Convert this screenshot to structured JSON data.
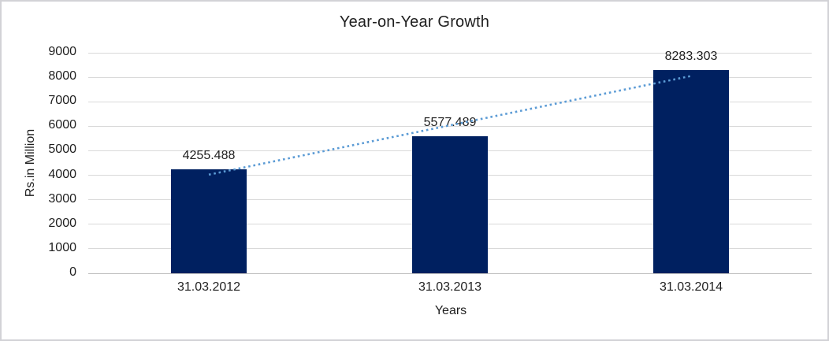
{
  "chart_data": {
    "type": "bar",
    "title": "Year-on-Year Growth",
    "categories": [
      "31.03.2012",
      "31.03.2013",
      "31.03.2014"
    ],
    "values": [
      4255.488,
      5577.489,
      8283.303
    ],
    "data_labels": [
      "4255.488",
      "5577.489",
      "8283.303"
    ],
    "xlabel": "Years",
    "ylabel": "Rs.in Million",
    "ylim": [
      0,
      9000
    ],
    "ytick_step": 1000,
    "ytick_labels": [
      "0",
      "1000",
      "2000",
      "3000",
      "4000",
      "5000",
      "6000",
      "7000",
      "8000",
      "9000"
    ],
    "grid": true,
    "legend": "none",
    "trendline": {
      "type": "linear",
      "style": "dotted"
    },
    "colors": {
      "bar": "#002060",
      "trendline": "#5B9BD5",
      "gridline": "#D9D9D9",
      "axis_line": "#BFBFBF",
      "text": "#1f1f1f",
      "frame_border": "#d2d2d6",
      "background": "#ffffff"
    }
  }
}
